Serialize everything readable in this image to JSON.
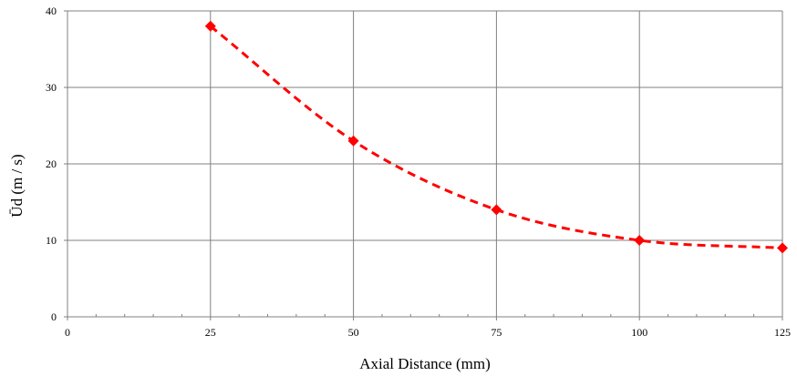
{
  "chart_data": {
    "type": "line",
    "xlabel": "Axial Distance (mm)",
    "ylabel": "Ūd (m / s)",
    "xlim": [
      0,
      125
    ],
    "ylim": [
      0,
      40
    ],
    "x_ticks": [
      0,
      25,
      50,
      75,
      100,
      125
    ],
    "y_ticks": [
      0,
      10,
      20,
      30,
      40
    ],
    "x_tick_labels": [
      "0",
      "25",
      "50",
      "75",
      "100",
      "125"
    ],
    "y_tick_labels": [
      "0",
      "10",
      "20",
      "30",
      "40"
    ],
    "grid": true,
    "series": [
      {
        "x": [
          25,
          50,
          75,
          100,
          125
        ],
        "y": [
          38,
          23,
          14,
          10,
          9
        ],
        "color": "#ff0000",
        "marker": "diamond",
        "line_style": "dashed-smooth"
      }
    ]
  }
}
